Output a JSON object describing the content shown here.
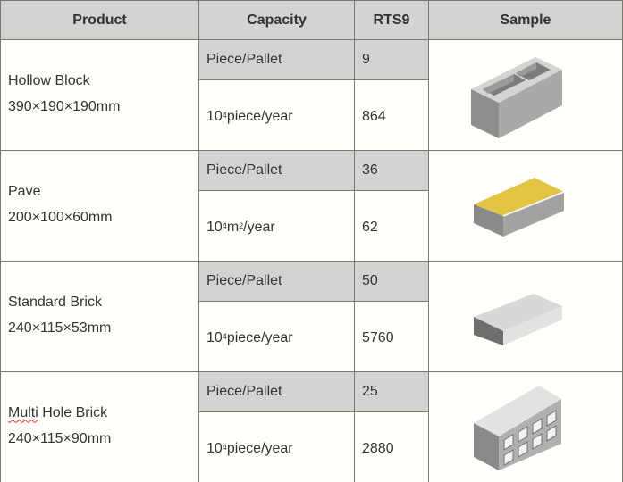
{
  "header": {
    "product": "Product",
    "capacity": "Capacity",
    "model": "RTS9",
    "sample": "Sample"
  },
  "rows": [
    {
      "name": "Hollow Block",
      "size": "390×190×190mm",
      "unit1": "Piece/Pallet",
      "value1": "9",
      "unit2_base": "10",
      "unit2_exp": "4",
      "unit2_rest": "piece/year",
      "value2": "864",
      "sample_icon": "hollow-block-image"
    },
    {
      "name": "Pave",
      "size": "200×100×60mm",
      "unit1": "Piece/Pallet",
      "value1": "36",
      "unit2_base": "10",
      "unit2_exp": "4",
      "unit2_mid": " m",
      "unit2_exp2": "2",
      "unit2_rest": "/year",
      "value2": "62",
      "sample_icon": "paver-image",
      "accent": "#e3c444"
    },
    {
      "name": "Standard Brick",
      "size": "240×115×53mm",
      "unit1": "Piece/Pallet",
      "value1": "50",
      "unit2_base": "10",
      "unit2_exp": "4",
      "unit2_rest": "piece/year",
      "value2": "5760",
      "sample_icon": "standard-brick-image"
    },
    {
      "name": "Multi Hole Brick",
      "name_first": "Multi",
      "name_rest": " Hole Brick",
      "size": "240×115×90mm",
      "unit1": "Piece/Pallet",
      "value1": "25",
      "unit2_base": "10",
      "unit2_exp": "4",
      "unit2_rest": "piece/year",
      "value2": "2880",
      "sample_icon": "multi-hole-brick-image"
    }
  ]
}
